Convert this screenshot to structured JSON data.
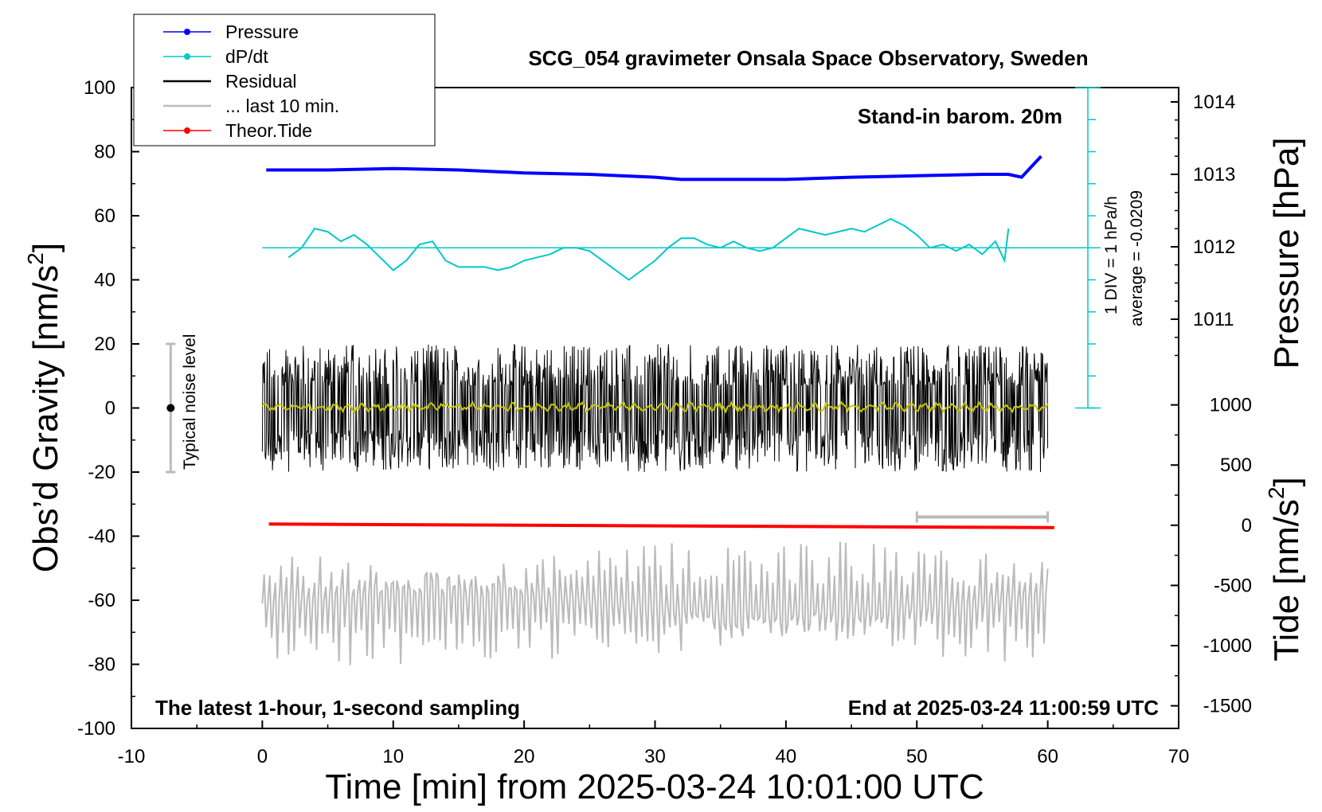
{
  "chart_data": {
    "type": "line",
    "title": "SCG_054 gravimeter Onsala Space Observatory, Sweden",
    "xlabel": "Time [min] from 2025-03-24 10:01:00 UTC",
    "ylabel": "Obs’d Gravity [nm/s²]",
    "ylabel_main": "Obs’d Gravity [nm/s",
    "ylabel_sup": "2",
    "ylabel_tail": "]",
    "y2label": "Pressure [hPa]",
    "y3label_main": "Tide [nm/s",
    "y3label_sup": "2",
    "y3label_tail": "]",
    "xlim": [
      -10,
      70
    ],
    "ylim": [
      -100,
      100
    ],
    "xticks": [
      -10,
      0,
      10,
      20,
      30,
      40,
      50,
      60,
      70
    ],
    "yticks": [
      -100,
      -80,
      -60,
      -40,
      -20,
      0,
      20,
      40,
      60,
      80,
      100
    ],
    "pressure_ticks": [
      1011,
      1012,
      1013,
      1014
    ],
    "tide_ticks": [
      -1500,
      -1000,
      -500,
      0,
      500,
      1000
    ],
    "grid": false,
    "legend_position": "top-left",
    "annotations": {
      "barometer": "Stand-in barom. 20m",
      "div": "1 DIV = 1 hPa/h",
      "average": "average = -0.0209",
      "noise": "Typical noise level",
      "bottom_left": "The latest 1-hour, 1-second sampling",
      "bottom_right": "End at 2025-03-24 11:00:59 UTC"
    },
    "series": [
      {
        "name": "Pressure",
        "color": "#0000ff",
        "unit": "hPa",
        "x": [
          0.3,
          5,
          10,
          15,
          20,
          25,
          30,
          32,
          35,
          40,
          45,
          50,
          55,
          57,
          58,
          59.5
        ],
        "y": [
          1013.06,
          1013.06,
          1013.08,
          1013.06,
          1013.02,
          1013.0,
          1012.96,
          1012.93,
          1012.93,
          1012.93,
          1012.96,
          1012.98,
          1013.0,
          1013.0,
          1012.96,
          1013.25
        ]
      },
      {
        "name": "dP/dt",
        "color": "#00c8c8",
        "unit": "nm/s² scale (1 DIV = 1 hPa/h, baseline = average)",
        "x": [
          2,
          3,
          4,
          5,
          6,
          7,
          8,
          9,
          10,
          11,
          12,
          13,
          14,
          15,
          16,
          17,
          18,
          19,
          20,
          21,
          22,
          23,
          24,
          25,
          26,
          27,
          28,
          29,
          30,
          31,
          32,
          33,
          34,
          35,
          36,
          37,
          38,
          39,
          40,
          41,
          42,
          43,
          44,
          45,
          46,
          47,
          48,
          49,
          50,
          51,
          52,
          53,
          54,
          55,
          56,
          56.7,
          57
        ],
        "y": [
          47,
          50,
          56,
          55,
          52,
          54,
          51,
          47,
          43,
          46,
          51,
          52,
          46,
          44,
          44,
          44,
          43,
          44,
          46,
          47,
          48,
          50,
          50,
          49,
          46,
          43,
          40,
          43,
          46,
          50,
          53,
          53,
          51,
          50,
          52,
          50,
          49,
          50,
          53,
          56,
          55,
          54,
          55,
          56,
          55,
          57,
          59,
          57,
          54,
          50,
          51,
          49,
          51,
          48,
          52,
          46,
          56
        ]
      },
      {
        "name": "Residual",
        "color": "#000000",
        "x": [
          0,
          60
        ],
        "y": [
          0,
          0
        ],
        "range": [
          -20,
          20
        ]
      },
      {
        "name": "... last 10 min.",
        "color": "#bbbbbb",
        "x": [
          50,
          60
        ],
        "y": [
          -34,
          -34
        ]
      },
      {
        "name": "Theor.Tide",
        "color": "#ff0000",
        "unit": "nm/s²",
        "x": [
          0.5,
          60.5
        ],
        "y": [
          10,
          -20
        ]
      }
    ],
    "noise_bar": {
      "x": -7,
      "y": [
        -20,
        20
      ]
    }
  }
}
